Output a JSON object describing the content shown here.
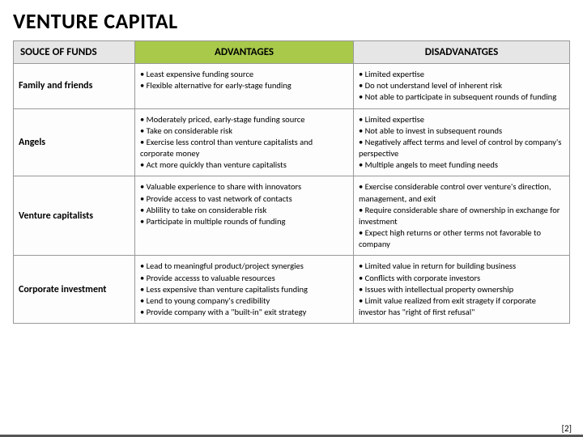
{
  "title": "VENTURE CAPITAL",
  "headers": {
    "col1": "SOUCE OF FUNDS",
    "col2": "ADVANTAGES",
    "col3": "DISADVANATGES"
  },
  "rows": [
    {
      "label": "Family and friends",
      "advantages": [
        "Least expensive funding source",
        "Flexible alternative for early-stage funding"
      ],
      "disadvantages": [
        "Limited expertise",
        "Do not understand level of inherent risk",
        "Not able to participate in subsequent rounds of funding"
      ]
    },
    {
      "label": "Angels",
      "advantages": [
        "Moderately priced, early-stage funding source",
        "Take on considerable risk",
        "Exercise less control than venture capitalists and corporate money",
        "Act more quickly than venture capitalists"
      ],
      "disadvantages": [
        "Limited expertise",
        "Not able to invest in subsequent rounds",
        "Negatively affect terms and level of control by company's perspective",
        "Multiple angels to meet funding needs"
      ]
    },
    {
      "label": "Venture capitalists",
      "advantages": [
        "Valuable experience to share with innovators",
        "Provide access to vast network of contacts",
        "Ablility to take on considerable risk",
        "Participate in multiple rounds of funding"
      ],
      "disadvantages": [
        "Exercise considerable control over venture's direction, management, and exit",
        "Require considerable share of ownership in exchange for investment",
        "Expect high returns or other terms not favorable to company"
      ]
    },
    {
      "label": "Corporate investment",
      "advantages": [
        "Lead to meaningful product/project synergies",
        "Provide accesss to valuable resources",
        "Less expensive than venture capitalists funding",
        "Lend to young company's credibility",
        "Provide company with a \"built-in\" exit strategy"
      ],
      "disadvantages": [
        "Limited value in return for building business",
        "Conflicts with corporate investors",
        "Issues with intellectual property ownership",
        "Limit value realized from exit stragety if corporate investor has \"right of first refusal\""
      ]
    }
  ],
  "footer_ref": "[2]",
  "colors": {
    "header_grey": "#e6e6e6",
    "header_green": "#a8c94a",
    "border": "#999999",
    "text": "#000000",
    "background": "#ffffff"
  }
}
